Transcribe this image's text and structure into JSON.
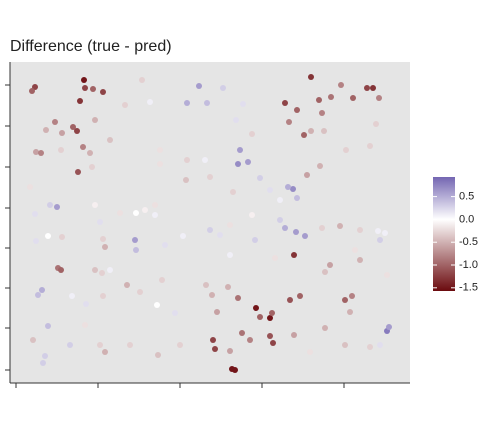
{
  "chart_data": {
    "type": "scatter",
    "title": "Difference (true - pred)",
    "x": [
      25,
      22,
      74,
      75,
      83,
      93,
      70,
      132,
      140,
      115,
      45,
      36,
      52,
      63,
      67,
      85,
      26,
      31,
      51,
      73,
      80,
      100,
      68,
      82,
      20,
      177,
      189,
      197,
      213,
      233,
      226,
      242,
      230,
      228,
      238,
      195,
      177,
      150,
      150,
      176,
      200,
      223,
      250,
      301,
      331,
      363,
      357,
      369,
      343,
      321,
      309,
      275,
      287,
      279,
      294,
      301,
      314,
      312,
      366,
      360,
      336,
      310,
      297,
      283,
      278,
      287,
      270,
      260,
      40,
      47,
      25,
      38,
      26,
      52,
      85,
      93,
      95,
      90,
      110,
      126,
      135,
      145,
      145,
      125,
      126,
      155,
      173,
      200,
      210,
      220,
      245,
      220,
      242,
      270,
      275,
      286,
      295,
      312,
      330,
      350,
      368,
      375,
      370,
      345,
      350,
      284,
      265,
      48,
      51,
      85,
      92,
      100,
      28,
      32,
      62,
      76,
      93,
      117,
      130,
      152,
      147,
      165,
      196,
      202,
      218,
      228,
      207,
      246,
      250,
      260,
      262,
      280,
      290,
      315,
      320,
      335,
      342,
      340,
      377,
      377,
      379,
      315,
      38,
      60,
      75,
      90,
      95,
      148,
      170,
      203,
      205,
      232,
      240,
      260,
      263,
      222,
      225,
      220,
      284,
      300,
      335,
      360,
      370,
      35,
      33,
      23,
      120
    ],
    "y": [
      296,
      292,
      303,
      295,
      294,
      291,
      282,
      303,
      281,
      278,
      261,
      253,
      250,
      256,
      252,
      263,
      231,
      230,
      233,
      236,
      230,
      243,
      211,
      216,
      196,
      280,
      297,
      280,
      295,
      279,
      263,
      249,
      233,
      219,
      221,
      223,
      223,
      219,
      233,
      203,
      206,
      191,
      205,
      306,
      298,
      295,
      295,
      285,
      285,
      286,
      283,
      280,
      273,
      261,
      248,
      252,
      252,
      270,
      259,
      237,
      233,
      217,
      208,
      194,
      196,
      185,
      183,
      193,
      178,
      176,
      169,
      147,
      142,
      146,
      178,
      144,
      136,
      161,
      170,
      170,
      173,
      178,
      168,
      143,
      133,
      138,
      147,
      153,
      148,
      158,
      143,
      128,
      168,
      163,
      155,
      151,
      147,
      155,
      157,
      153,
      152,
      150,
      143,
      133,
      123,
      128,
      125,
      115,
      113,
      113,
      110,
      113,
      88,
      93,
      87,
      79,
      87,
      98,
      91,
      103,
      78,
      70,
      98,
      88,
      96,
      85,
      71,
      75,
      66,
      65,
      70,
      83,
      87,
      111,
      118,
      83,
      87,
      71,
      108,
      52,
      56,
      55,
      57,
      38,
      58,
      38,
      31,
      28,
      38,
      43,
      34,
      50,
      43,
      47,
      40,
      14,
      13,
      32,
      48,
      31,
      38,
      36,
      38,
      27,
      20,
      43,
      38
    ],
    "values": [
      -1.2,
      -1.0,
      -1.5,
      -1.2,
      -1.0,
      -1.2,
      -1.3,
      -0.3,
      0.1,
      -0.3,
      -0.8,
      -0.5,
      -0.6,
      -1.0,
      -1.2,
      -0.5,
      -0.6,
      -0.8,
      -0.3,
      -0.8,
      -0.5,
      -0.4,
      -1.1,
      -0.3,
      -0.2,
      0.5,
      0.6,
      0.4,
      0.3,
      0.2,
      0.2,
      -0.3,
      0.6,
      0.7,
      0.6,
      0.1,
      -0.3,
      -0.2,
      -0.2,
      -0.4,
      -0.3,
      -0.3,
      0.3,
      -1.3,
      -0.8,
      -1.3,
      -1.2,
      -0.8,
      -1.0,
      -0.9,
      -1.0,
      -1.2,
      -1.0,
      -0.8,
      -1.0,
      -0.5,
      -0.4,
      -0.8,
      -0.3,
      -0.3,
      -0.3,
      -0.5,
      -0.6,
      0.7,
      0.5,
      0.4,
      0.1,
      0.2,
      0.3,
      0.6,
      0.2,
      0.0,
      0.2,
      -0.3,
      -0.1,
      -0.3,
      -0.5,
      0.2,
      -0.2,
      0.0,
      -0.1,
      -0.2,
      0.1,
      0.6,
      0.4,
      0.2,
      0.1,
      0.3,
      0.2,
      -0.2,
      0.3,
      0.1,
      -0.1,
      0.3,
      0.5,
      0.6,
      0.6,
      -0.3,
      -0.5,
      -0.3,
      0.1,
      0.1,
      0.3,
      -0.2,
      -0.5,
      -1.3,
      -0.2,
      -0.9,
      -1.0,
      -0.4,
      -0.3,
      0.1,
      0.4,
      0.5,
      0.1,
      0.2,
      -0.3,
      -0.5,
      -0.3,
      -0.3,
      0.0,
      0.2,
      -0.4,
      -0.5,
      -0.5,
      -0.9,
      -0.6,
      -1.5,
      -1.0,
      -1.5,
      -1.0,
      -1.1,
      -1.0,
      -0.4,
      -0.6,
      -1.0,
      -0.8,
      -0.5,
      -0.2,
      0.8,
      0.6,
      -0.5,
      0.4,
      0.3,
      -0.2,
      -0.3,
      -0.5,
      -0.4,
      -0.3,
      -1.2,
      -1.2,
      -0.9,
      -0.8,
      -1.1,
      -1.2,
      -1.5,
      -1.5,
      -0.6,
      -0.6,
      -0.2,
      -0.4,
      -0.3,
      0.2,
      0.3,
      0.3,
      -0.4,
      -0.3
    ],
    "xlim": [
      0,
      400
    ],
    "ylim": [
      0,
      321
    ],
    "xticks": [
      6,
      88,
      170,
      252,
      334
    ],
    "yticks": [
      13,
      55,
      95,
      135,
      175,
      216,
      257,
      298
    ],
    "colorlim": [
      -1.57,
      0.93
    ],
    "colorticks": [
      0.5,
      {
        "value": 0,
        "label": "0.0"
      },
      {
        "value": -0.5,
        "label": "-0.5"
      },
      {
        "value": -1,
        "label": "-1.0"
      },
      {
        "value": -1.5,
        "label": "-1.5"
      }
    ],
    "low_color": "#6b0a0e",
    "mid_color": "#ffffff",
    "high_color": "#7466b2",
    "legend_position": "right"
  }
}
